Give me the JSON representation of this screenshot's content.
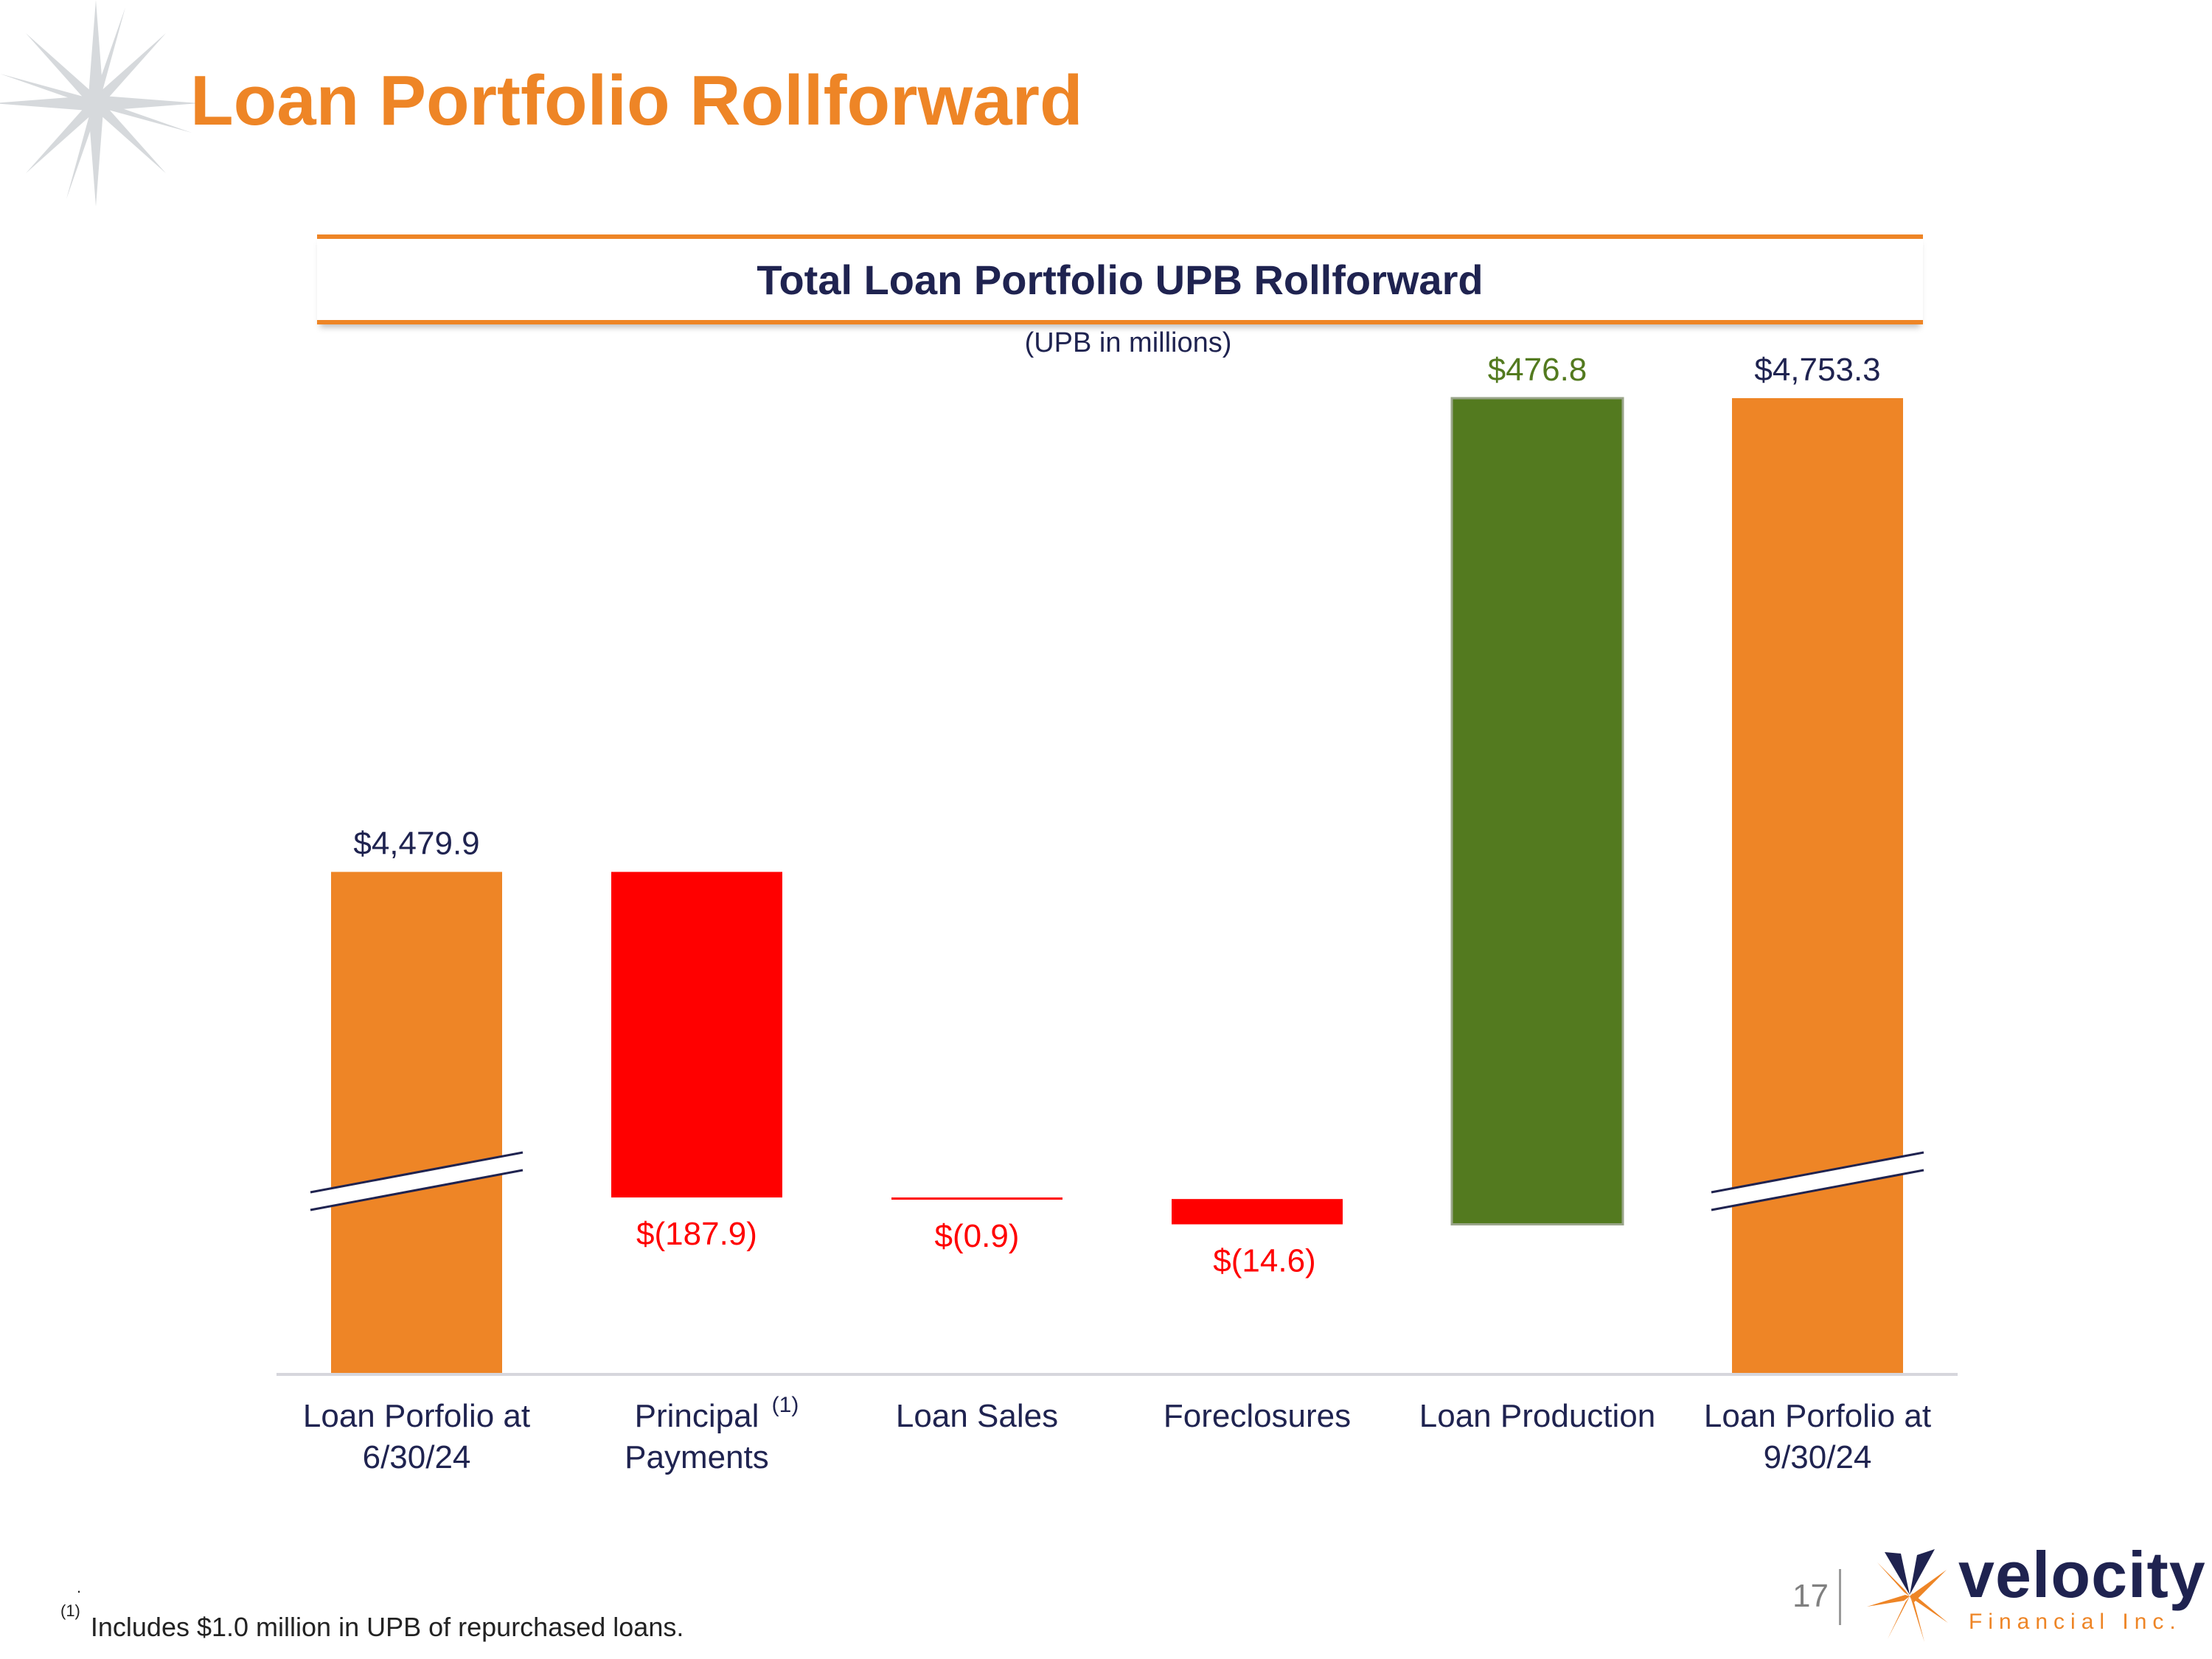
{
  "page": {
    "title": "Loan Portfolio Rollforward",
    "page_number": "17",
    "footnote_marker": "(1)",
    "footnote_text": "Includes $1.0 million in UPB of repurchased loans.",
    "footnote_dot": "."
  },
  "brand": {
    "name": "velocity",
    "subtitle": "Financial Inc.",
    "primary_color": "#EE8526",
    "navy_color": "#1F2350",
    "negative_color": "#FF0000",
    "positive_color": "#537A1F",
    "icon": "velocity-logo-icon"
  },
  "chart_data": {
    "type": "waterfall",
    "title": "Total Loan Portfolio UPB Rollforward",
    "subtitle": "(UPB in millions)",
    "units": "millions of USD",
    "axis_break": true,
    "categories": [
      {
        "label": [
          "Loan Porfolio at",
          "6/30/24"
        ],
        "footnote": ""
      },
      {
        "label": [
          "Principal",
          "Payments"
        ],
        "footnote": "(1)"
      },
      {
        "label": [
          "Loan Sales"
        ],
        "footnote": ""
      },
      {
        "label": [
          "Foreclosures"
        ],
        "footnote": ""
      },
      {
        "label": [
          "Loan Production"
        ],
        "footnote": ""
      },
      {
        "label": [
          "Loan Porfolio at",
          "9/30/24"
        ],
        "footnote": ""
      }
    ],
    "values": [
      4479.9,
      -187.9,
      -0.9,
      -14.6,
      476.8,
      4753.3
    ],
    "kinds": [
      "total",
      "delta",
      "delta",
      "delta",
      "delta",
      "total"
    ],
    "value_labels": [
      "$4,479.9",
      "$(187.9)",
      "$(0.9)",
      "$(14.6)",
      "$476.8",
      "$4,753.3"
    ],
    "colors": [
      "#EE8526",
      "#FF0000",
      "#FF0000",
      "#FF0000",
      "#537A1F",
      "#EE8526"
    ]
  }
}
